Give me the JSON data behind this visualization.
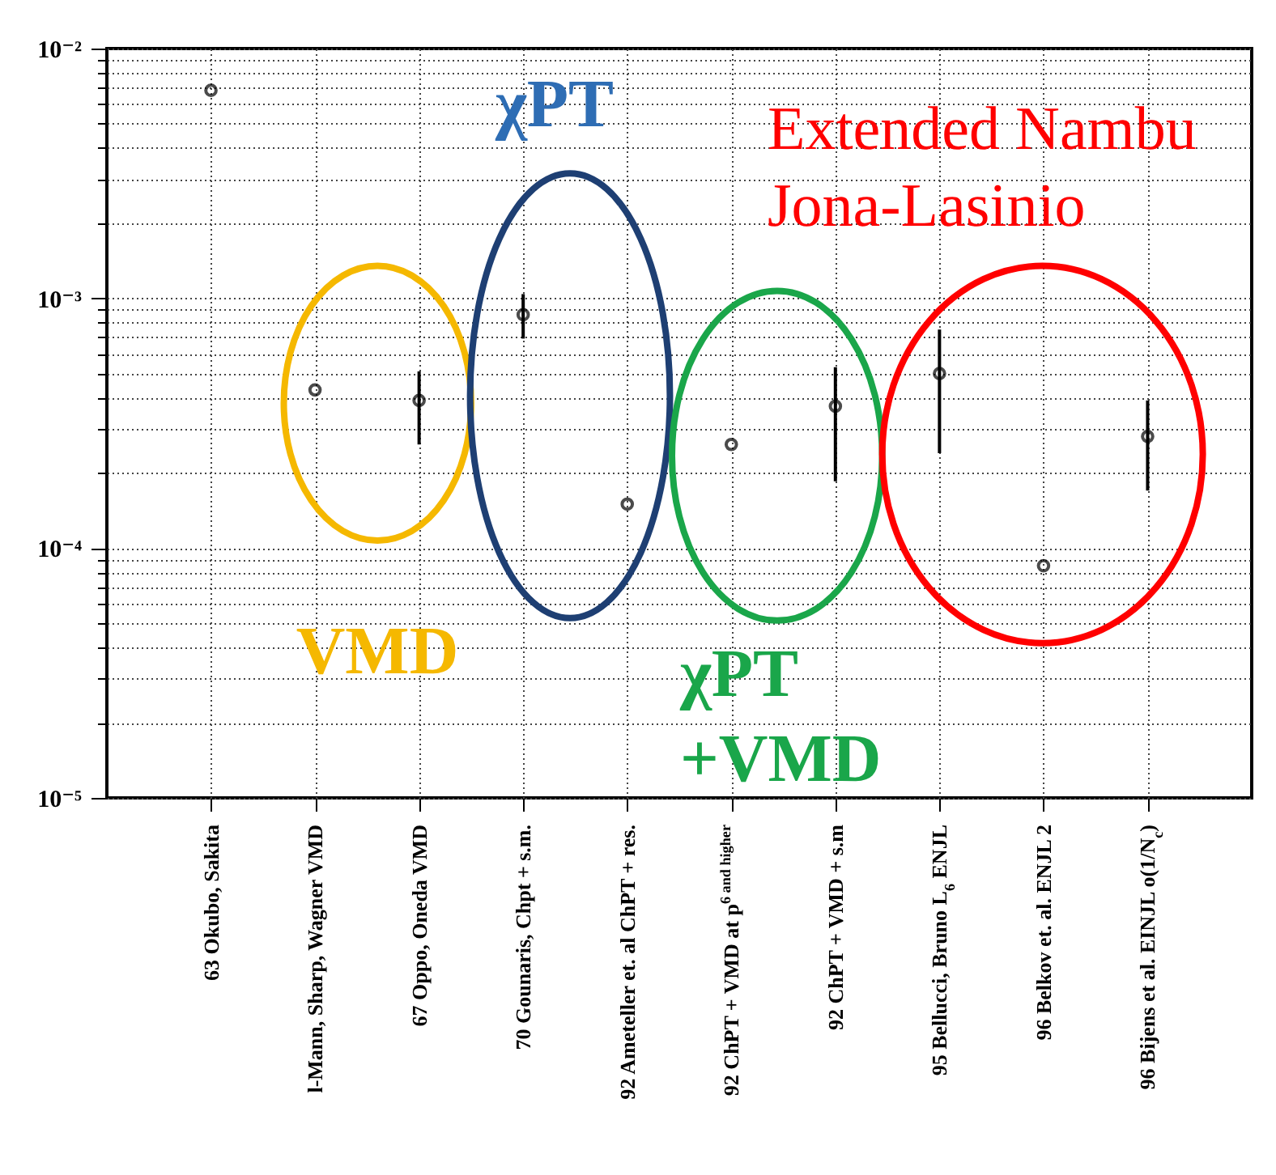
{
  "chart_data": {
    "type": "scatter",
    "categories": [
      "63 Okubo, Sakita",
      "l-Mann, Sharp, Wagner VMD",
      "67 Oppo, Oneda VMD",
      "70 Gounaris, Chpt + s.m.",
      "92 Ameteller et. al ChPT + res.",
      "92 ChPT + VMD at p$^{6 and higher}$",
      "92 ChPT + VMD + s.m",
      "95 Bellucci, Bruno L$_{6}$ ENJL",
      "96 Belkov et. al. ENJL 2",
      "96 Bijens et al. EINJL o(1/N$_{c}$)"
    ],
    "values": [
      0.0068,
      0.00043,
      0.00039,
      0.00086,
      0.00015,
      0.00026,
      0.00037,
      0.0005,
      8.5e-05,
      0.00028
    ],
    "errors": [
      null,
      null,
      [
        0.00026,
        0.00051
      ],
      [
        0.00069,
        0.00104
      ],
      null,
      null,
      [
        0.000185,
        0.00053
      ],
      [
        0.00024,
        0.00075
      ],
      null,
      [
        0.00017,
        0.00039
      ]
    ],
    "color": "#000000",
    "marker": "circle",
    "log": true,
    "grid": true,
    "ylim": [
      1e-05,
      0.01
    ],
    "yticks": [
      {
        "value": 1e-05,
        "label": "10⁻⁵"
      },
      {
        "value": 2e-05,
        "label": null
      },
      {
        "value": 3e-05,
        "label": null
      },
      {
        "value": 4e-05,
        "label": null
      },
      {
        "value": 5e-05,
        "label": null
      },
      {
        "value": 6e-05,
        "label": null
      },
      {
        "value": 7e-05,
        "label": null
      },
      {
        "value": 8e-05,
        "label": null
      },
      {
        "value": 9e-05,
        "label": null
      },
      {
        "value": 0.0001,
        "label": "10⁻⁴"
      },
      {
        "value": 0.0002,
        "label": null
      },
      {
        "value": 0.0003,
        "label": null
      },
      {
        "value": 0.0004,
        "label": null
      },
      {
        "value": 0.0005,
        "label": null
      },
      {
        "value": 0.0006,
        "label": null
      },
      {
        "value": 0.0007,
        "label": null
      },
      {
        "value": 0.0008,
        "label": null
      },
      {
        "value": 0.0009,
        "label": null
      },
      {
        "value": 0.001,
        "label": "10⁻³"
      },
      {
        "value": 0.002,
        "label": null
      },
      {
        "value": 0.003,
        "label": null
      },
      {
        "value": 0.004,
        "label": null
      },
      {
        "value": 0.005,
        "label": null
      },
      {
        "value": 0.006,
        "label": null
      },
      {
        "value": 0.007,
        "label": null
      },
      {
        "value": 0.008,
        "label": null
      },
      {
        "value": 0.009,
        "label": null
      },
      {
        "value": 0.01,
        "label": "10⁻²"
      }
    ],
    "annotations": [
      "VMD",
      "χPT",
      "χPT +VMD",
      "Extended Nambu Jona-Lasinio"
    ]
  }
}
